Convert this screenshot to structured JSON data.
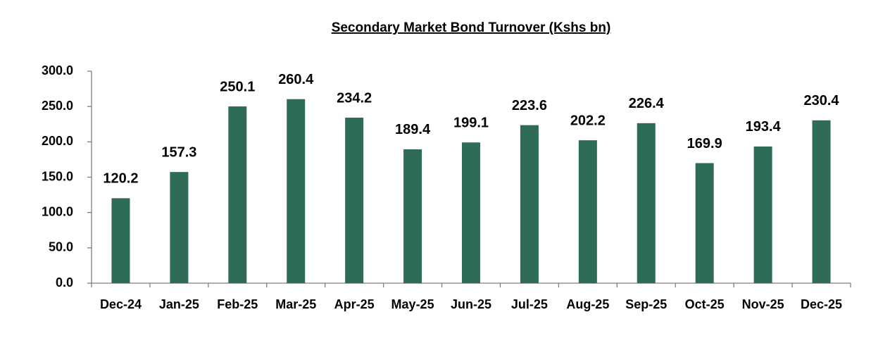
{
  "chart_data": {
    "type": "bar",
    "title": "Secondary Market Bond Turnover (Kshs bn)",
    "categories": [
      "Dec-24",
      "Jan-25",
      "Feb-25",
      "Mar-25",
      "Apr-25",
      "May-25",
      "Jun-25",
      "Jul-25",
      "Aug-25",
      "Sep-25",
      "Oct-25",
      "Nov-25",
      "Dec-25"
    ],
    "values": [
      120.2,
      157.3,
      250.1,
      260.4,
      234.2,
      189.4,
      199.1,
      223.6,
      202.2,
      226.4,
      169.9,
      193.4,
      230.4
    ],
    "color": "#2e6b59",
    "ylim": [
      0,
      300
    ],
    "yticks": [
      {
        "value": 0,
        "label": "0.0"
      },
      {
        "value": 50,
        "label": "50.0"
      },
      {
        "value": 100,
        "label": "100.0"
      },
      {
        "value": 150,
        "label": "150.0"
      },
      {
        "value": 200,
        "label": "200.0"
      },
      {
        "value": 250,
        "label": "250.0"
      },
      {
        "value": 300,
        "label": "300.0"
      }
    ],
    "grid": false
  }
}
